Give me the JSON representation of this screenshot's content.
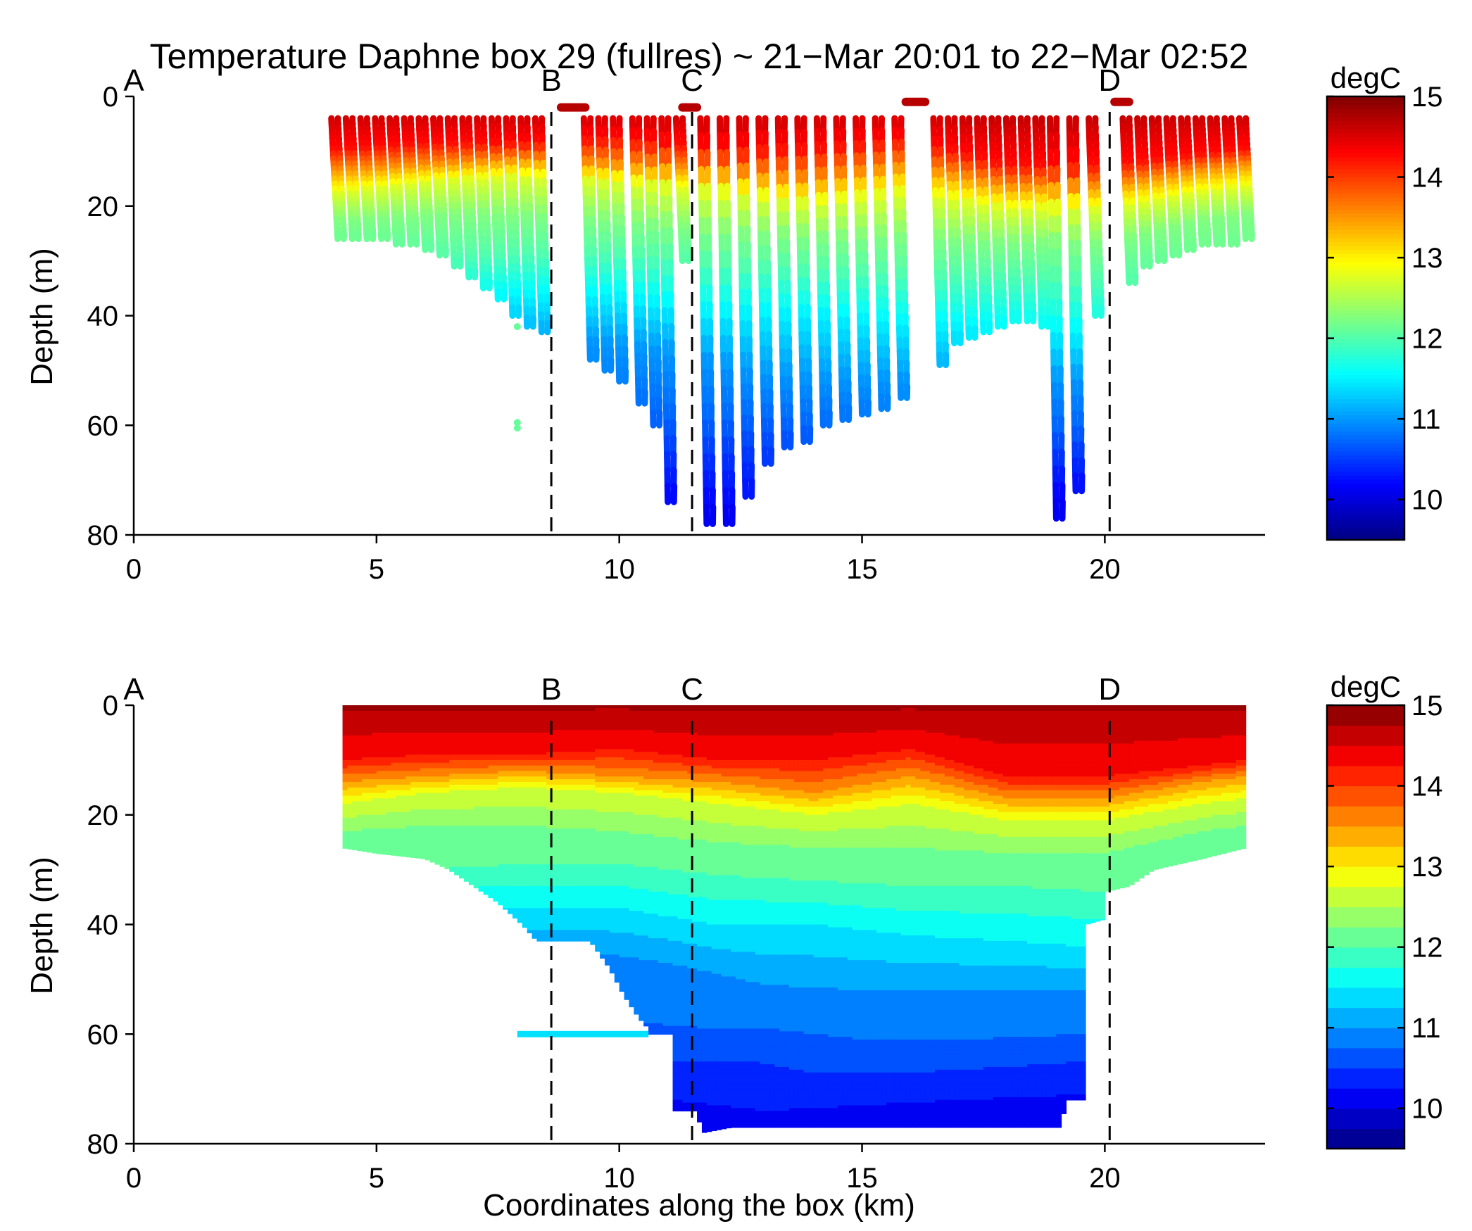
{
  "title": "Temperature Daphne box 29 (fullres) ~ 21−Mar 20:01 to 22−Mar 02:52",
  "chart_data": [
    {
      "type": "scatter",
      "panel": "top",
      "ylabel": "Depth (m)",
      "xlabel": "",
      "xlim": [
        0,
        23.3
      ],
      "ylim": [
        0,
        80
      ],
      "y_reversed": true,
      "xticks": [
        0,
        5,
        10,
        15,
        20
      ],
      "yticks": [
        0,
        20,
        40,
        60,
        80
      ],
      "grid": false,
      "markers": [
        {
          "label": "A",
          "x": 0,
          "dashed": false
        },
        {
          "label": "B",
          "x": 8.6,
          "dashed": true
        },
        {
          "label": "C",
          "x": 11.5,
          "dashed": true
        },
        {
          "label": "D",
          "x": 20.1,
          "dashed": true
        }
      ],
      "colorbar": {
        "unit": "degC",
        "ticks": [
          10,
          11,
          12,
          13,
          14,
          15
        ],
        "range": [
          9.5,
          15
        ],
        "colormap": "jet"
      },
      "profiles": [
        {
          "x": 4.2,
          "max_depth": 26
        },
        {
          "x": 4.5,
          "max_depth": 26
        },
        {
          "x": 4.8,
          "max_depth": 26
        },
        {
          "x": 5.1,
          "max_depth": 26
        },
        {
          "x": 5.4,
          "max_depth": 27
        },
        {
          "x": 5.7,
          "max_depth": 27
        },
        {
          "x": 6.0,
          "max_depth": 28
        },
        {
          "x": 6.3,
          "max_depth": 29
        },
        {
          "x": 6.6,
          "max_depth": 31
        },
        {
          "x": 6.9,
          "max_depth": 33
        },
        {
          "x": 7.2,
          "max_depth": 35
        },
        {
          "x": 7.5,
          "max_depth": 37
        },
        {
          "x": 7.8,
          "max_depth": 40
        },
        {
          "x": 8.1,
          "max_depth": 42
        },
        {
          "x": 8.4,
          "max_depth": 43
        },
        {
          "x": 9.4,
          "max_depth": 48
        },
        {
          "x": 9.7,
          "max_depth": 50
        },
        {
          "x": 10.0,
          "max_depth": 52
        },
        {
          "x": 10.4,
          "max_depth": 56
        },
        {
          "x": 10.7,
          "max_depth": 60
        },
        {
          "x": 11.0,
          "max_depth": 74
        },
        {
          "x": 11.3,
          "max_depth": 30
        },
        {
          "x": 11.8,
          "max_depth": 78
        },
        {
          "x": 12.2,
          "max_depth": 78
        },
        {
          "x": 12.6,
          "max_depth": 73
        },
        {
          "x": 13.0,
          "max_depth": 67
        },
        {
          "x": 13.4,
          "max_depth": 64
        },
        {
          "x": 13.8,
          "max_depth": 63
        },
        {
          "x": 14.2,
          "max_depth": 60
        },
        {
          "x": 14.6,
          "max_depth": 59
        },
        {
          "x": 15.0,
          "max_depth": 58
        },
        {
          "x": 15.4,
          "max_depth": 57
        },
        {
          "x": 15.8,
          "max_depth": 55
        },
        {
          "x": 16.6,
          "max_depth": 49
        },
        {
          "x": 16.9,
          "max_depth": 45
        },
        {
          "x": 17.2,
          "max_depth": 44
        },
        {
          "x": 17.5,
          "max_depth": 43
        },
        {
          "x": 17.8,
          "max_depth": 42
        },
        {
          "x": 18.1,
          "max_depth": 41
        },
        {
          "x": 18.4,
          "max_depth": 41
        },
        {
          "x": 18.7,
          "max_depth": 42
        },
        {
          "x": 19.0,
          "max_depth": 77
        },
        {
          "x": 19.4,
          "max_depth": 72
        },
        {
          "x": 19.8,
          "max_depth": 40
        },
        {
          "x": 20.5,
          "max_depth": 34
        },
        {
          "x": 20.8,
          "max_depth": 31
        },
        {
          "x": 21.1,
          "max_depth": 30
        },
        {
          "x": 21.4,
          "max_depth": 29
        },
        {
          "x": 21.7,
          "max_depth": 28
        },
        {
          "x": 22.0,
          "max_depth": 27
        },
        {
          "x": 22.3,
          "max_depth": 27
        },
        {
          "x": 22.6,
          "max_depth": 27
        },
        {
          "x": 22.9,
          "max_depth": 26
        }
      ],
      "surface_segments": [
        {
          "x_start": 8.8,
          "x_end": 9.3,
          "depth": 2
        },
        {
          "x_start": 11.3,
          "x_end": 11.6,
          "depth": 2
        },
        {
          "x_start": 15.9,
          "x_end": 16.3,
          "depth": 1
        },
        {
          "x_start": 20.2,
          "x_end": 20.5,
          "depth": 1
        }
      ],
      "isolated_points": [
        {
          "x": 7.9,
          "depth": 42,
          "temp": 12.1
        },
        {
          "x": 7.9,
          "depth": 59.5,
          "temp": 12.1
        },
        {
          "x": 7.9,
          "depth": 60.5,
          "temp": 12.1
        }
      ]
    },
    {
      "type": "contour",
      "panel": "bottom",
      "ylabel": "Depth (m)",
      "xlabel": "Coordinates along the box (km)",
      "xlim": [
        0,
        23.3
      ],
      "ylim": [
        0,
        80
      ],
      "y_reversed": true,
      "xticks": [
        0,
        5,
        10,
        15,
        20
      ],
      "yticks": [
        0,
        20,
        40,
        60,
        80
      ],
      "grid": false,
      "markers": [
        {
          "label": "A",
          "x": 0,
          "dashed": false
        },
        {
          "label": "B",
          "x": 8.6,
          "dashed": true
        },
        {
          "label": "C",
          "x": 11.5,
          "dashed": true
        },
        {
          "label": "D",
          "x": 20.1,
          "dashed": true
        }
      ],
      "colorbar": {
        "unit": "degC",
        "ticks": [
          10,
          11,
          12,
          13,
          14,
          15
        ],
        "range": [
          9.5,
          15
        ],
        "levels_step": 0.25,
        "colormap": "jet"
      },
      "bottom_outline": [
        [
          4.3,
          26
        ],
        [
          5.0,
          27
        ],
        [
          6.0,
          28
        ],
        [
          6.5,
          30
        ],
        [
          7.0,
          33
        ],
        [
          7.5,
          36
        ],
        [
          8.0,
          40
        ],
        [
          8.3,
          43
        ],
        [
          9.4,
          43
        ],
        [
          9.8,
          48
        ],
        [
          10.1,
          53
        ],
        [
          10.4,
          57
        ],
        [
          10.6,
          59
        ],
        [
          10.6,
          60
        ],
        [
          11.1,
          60
        ],
        [
          11.1,
          74
        ],
        [
          11.6,
          74
        ],
        [
          11.7,
          78
        ],
        [
          12.3,
          77
        ],
        [
          19.1,
          77
        ],
        [
          19.2,
          72
        ],
        [
          19.6,
          72
        ],
        [
          19.6,
          60
        ],
        [
          19.6,
          40
        ],
        [
          20.0,
          39
        ],
        [
          20.0,
          34
        ],
        [
          20.5,
          33
        ],
        [
          21.0,
          30
        ],
        [
          22.0,
          28
        ],
        [
          22.9,
          26
        ]
      ],
      "left_edge_x": 4.3,
      "right_edge_x": 22.9,
      "stray_line": {
        "x_start": 7.9,
        "x_end": 10.6,
        "depth": 60
      },
      "isotherms": [
        {
          "temp": 14.25,
          "depths": [
            [
              4.3,
              10
            ],
            [
              6,
              9
            ],
            [
              8,
              9
            ],
            [
              10,
              8
            ],
            [
              12,
              10
            ],
            [
              14,
              10
            ],
            [
              16,
              8
            ],
            [
              18,
              13
            ],
            [
              20,
              13
            ],
            [
              22,
              11
            ],
            [
              22.9,
              10
            ]
          ]
        },
        {
          "temp": 13.5,
          "depths": [
            [
              4.3,
              14
            ],
            [
              6,
              13
            ],
            [
              8,
              12
            ],
            [
              10,
              13
            ],
            [
              12,
              14
            ],
            [
              14,
              16
            ],
            [
              16,
              13
            ],
            [
              18,
              17
            ],
            [
              20,
              17
            ],
            [
              22,
              14
            ],
            [
              22.9,
              13
            ]
          ]
        },
        {
          "temp": 12.75,
          "depths": [
            [
              4.3,
              18
            ],
            [
              6,
              16
            ],
            [
              8,
              15
            ],
            [
              10,
              16
            ],
            [
              12,
              18
            ],
            [
              14,
              20
            ],
            [
              16,
              18
            ],
            [
              18,
              21
            ],
            [
              20,
              21
            ],
            [
              22,
              18
            ],
            [
              22.9,
              17
            ]
          ]
        },
        {
          "temp": 12.25,
          "depths": [
            [
              4.3,
              23
            ],
            [
              6,
              22
            ],
            [
              8,
              22
            ],
            [
              10,
              23
            ],
            [
              12,
              25
            ],
            [
              14,
              26
            ],
            [
              16,
              26
            ],
            [
              18,
              27
            ],
            [
              20,
              27
            ],
            [
              22,
              23
            ],
            [
              22.9,
              22
            ]
          ]
        },
        {
          "temp": 12.0,
          "depths": [
            [
              6,
              30
            ],
            [
              8,
              29
            ],
            [
              10,
              29
            ],
            [
              12,
              31
            ],
            [
              14,
              32
            ],
            [
              16,
              33
            ],
            [
              18,
              33
            ],
            [
              20,
              34
            ]
          ]
        },
        {
          "temp": 11.5,
          "depths": [
            [
              8,
              37
            ],
            [
              10,
              37
            ],
            [
              12,
              40
            ],
            [
              14,
              40
            ],
            [
              16,
              42
            ],
            [
              18,
              43
            ],
            [
              19.6,
              44
            ]
          ]
        },
        {
          "temp": 11.0,
          "depths": [
            [
              9.4,
              45
            ],
            [
              11,
              47
            ],
            [
              13,
              51
            ],
            [
              15,
              52
            ],
            [
              17,
              52
            ],
            [
              19.6,
              52
            ]
          ]
        },
        {
          "temp": 10.75,
          "depths": [
            [
              10.6,
              58
            ],
            [
              12,
              59
            ],
            [
              13,
              59
            ],
            [
              15,
              61
            ],
            [
              17,
              61
            ],
            [
              19.6,
              60
            ]
          ]
        },
        {
          "temp": 10.5,
          "depths": [
            [
              11.1,
              65
            ],
            [
              12.7,
              65
            ],
            [
              14,
              67
            ],
            [
              16,
              67
            ],
            [
              18,
              66
            ],
            [
              19.6,
              65
            ]
          ]
        },
        {
          "temp": 10.25,
          "depths": [
            [
              11.1,
              72
            ],
            [
              13,
              74
            ],
            [
              15,
              73
            ],
            [
              17,
              72
            ],
            [
              19.6,
              71
            ]
          ]
        }
      ]
    }
  ]
}
